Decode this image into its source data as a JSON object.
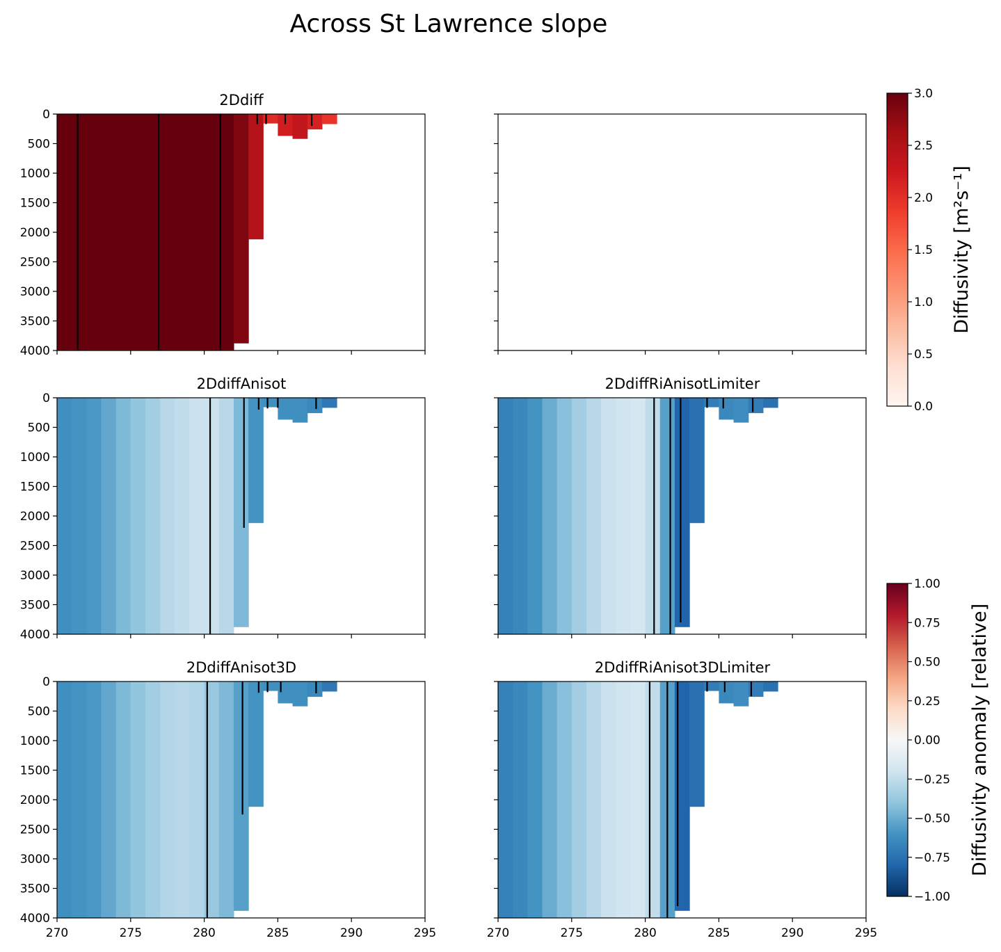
{
  "chart_data": {
    "type": "heatmap",
    "title": "Across St Lawrence slope",
    "shared_x": {
      "lim": [
        270,
        295
      ],
      "ticks": [
        270,
        275,
        280,
        285,
        290,
        295
      ],
      "tick_labels": [
        "270",
        "275",
        "280",
        "285",
        "290",
        "295"
      ]
    },
    "shared_y": {
      "lim": [
        0,
        4000
      ],
      "inverted": true,
      "ticks": [
        0,
        500,
        1000,
        1500,
        2000,
        2500,
        3000,
        3500,
        4000
      ],
      "tick_labels": [
        "0",
        "500",
        "1000",
        "1500",
        "2000",
        "2500",
        "3000",
        "3500",
        "4000"
      ]
    },
    "bar_x_edges": [
      270,
      271,
      272,
      273,
      274,
      275,
      276,
      277,
      278,
      279,
      280,
      281,
      282,
      283,
      284,
      285,
      286,
      287,
      288,
      289
    ],
    "bar_depths": [
      4000,
      4000,
      4000,
      4000,
      4000,
      4000,
      4000,
      4000,
      4000,
      4000,
      4000,
      4000,
      3880,
      2120,
      160,
      370,
      420,
      260,
      170
    ],
    "colorbars": [
      {
        "label": "Diffusivity [m²s⁻¹]",
        "colormap": "Reds",
        "range": [
          0.0,
          3.0
        ],
        "ticks": [
          0.0,
          0.5,
          1.0,
          1.5,
          2.0,
          2.5,
          3.0
        ],
        "tick_labels": [
          "0.0",
          "0.5",
          "1.0",
          "1.5",
          "2.0",
          "2.5",
          "3.0"
        ],
        "stops": [
          "#fff5f0",
          "#fee0d2",
          "#fcbba1",
          "#fc9272",
          "#fb6a4a",
          "#ef3b2c",
          "#cb181d",
          "#a50f15",
          "#67000d"
        ]
      },
      {
        "label": "Diffusivity anomaly [relative]",
        "colormap": "RdBu_r",
        "range": [
          -1.0,
          1.0
        ],
        "ticks": [
          -1.0,
          -0.75,
          -0.5,
          -0.25,
          0.0,
          0.25,
          0.5,
          0.75,
          1.0
        ],
        "tick_labels": [
          "−1.00",
          "−0.75",
          "−0.50",
          "−0.25",
          "0.00",
          "0.25",
          "0.50",
          "0.75",
          "1.00"
        ],
        "stops": [
          "#053061",
          "#2166ac",
          "#4393c3",
          "#92c5de",
          "#d1e5f0",
          "#f7f7f7",
          "#fddbc7",
          "#f4a582",
          "#d6604d",
          "#b2182b",
          "#67001f"
        ]
      }
    ],
    "panels": [
      {
        "title": "2Ddiff",
        "colorbar": 0,
        "values": [
          3.0,
          3.0,
          3.0,
          3.0,
          3.0,
          3.0,
          3.0,
          3.0,
          3.0,
          3.0,
          3.0,
          3.0,
          2.85,
          2.5,
          2.05,
          2.2,
          2.35,
          2.15,
          1.95
        ],
        "lines": [
          [
            271.4,
            4000
          ],
          [
            276.9,
            4000
          ],
          [
            281.1,
            4000
          ],
          [
            283.6,
            170
          ],
          [
            284.2,
            170
          ],
          [
            285.5,
            170
          ],
          [
            287.3,
            200
          ]
        ]
      },
      {
        "title": "",
        "empty": true
      },
      {
        "title": "2DdiffAnisot",
        "colorbar": 1,
        "values": [
          -0.62,
          -0.6,
          -0.58,
          -0.52,
          -0.45,
          -0.4,
          -0.35,
          -0.28,
          -0.25,
          -0.22,
          -0.22,
          -0.28,
          -0.45,
          -0.6,
          -0.62,
          -0.62,
          -0.62,
          -0.65,
          -0.72
        ],
        "lines": [
          [
            280.4,
            4000
          ],
          [
            282.7,
            2200
          ],
          [
            283.7,
            200
          ],
          [
            284.3,
            180
          ],
          [
            285.0,
            170
          ],
          [
            287.6,
            190
          ]
        ]
      },
      {
        "title": "2DdiffRiAnisotLimiter",
        "colorbar": 1,
        "values": [
          -0.68,
          -0.65,
          -0.6,
          -0.5,
          -0.42,
          -0.35,
          -0.28,
          -0.22,
          -0.2,
          -0.18,
          -0.25,
          -0.55,
          -0.8,
          -0.75,
          -0.7,
          -0.65,
          -0.63,
          -0.7,
          -0.75
        ],
        "lines": [
          [
            280.6,
            4000
          ],
          [
            281.7,
            4000
          ],
          [
            282.4,
            3800
          ],
          [
            284.2,
            170
          ],
          [
            285.3,
            180
          ],
          [
            287.3,
            240
          ]
        ]
      },
      {
        "title": "2DdiffAnisot3D",
        "colorbar": 1,
        "values": [
          -0.62,
          -0.6,
          -0.58,
          -0.52,
          -0.45,
          -0.4,
          -0.35,
          -0.3,
          -0.28,
          -0.3,
          -0.38,
          -0.45,
          -0.55,
          -0.6,
          -0.62,
          -0.62,
          -0.62,
          -0.65,
          -0.72
        ],
        "lines": [
          [
            280.2,
            4000
          ],
          [
            282.6,
            2250
          ],
          [
            283.7,
            190
          ],
          [
            284.3,
            180
          ],
          [
            285.2,
            180
          ],
          [
            287.6,
            200
          ]
        ]
      },
      {
        "title": "2DdiffRiAnisot3DLimiter",
        "colorbar": 1,
        "values": [
          -0.68,
          -0.65,
          -0.6,
          -0.5,
          -0.42,
          -0.35,
          -0.28,
          -0.22,
          -0.2,
          -0.18,
          -0.25,
          -0.55,
          -0.8,
          -0.75,
          -0.7,
          -0.65,
          -0.63,
          -0.7,
          -0.75
        ],
        "lines": [
          [
            280.3,
            4000
          ],
          [
            281.5,
            4000
          ],
          [
            282.2,
            3800
          ],
          [
            284.2,
            170
          ],
          [
            285.4,
            180
          ],
          [
            287.2,
            250
          ]
        ]
      }
    ]
  }
}
